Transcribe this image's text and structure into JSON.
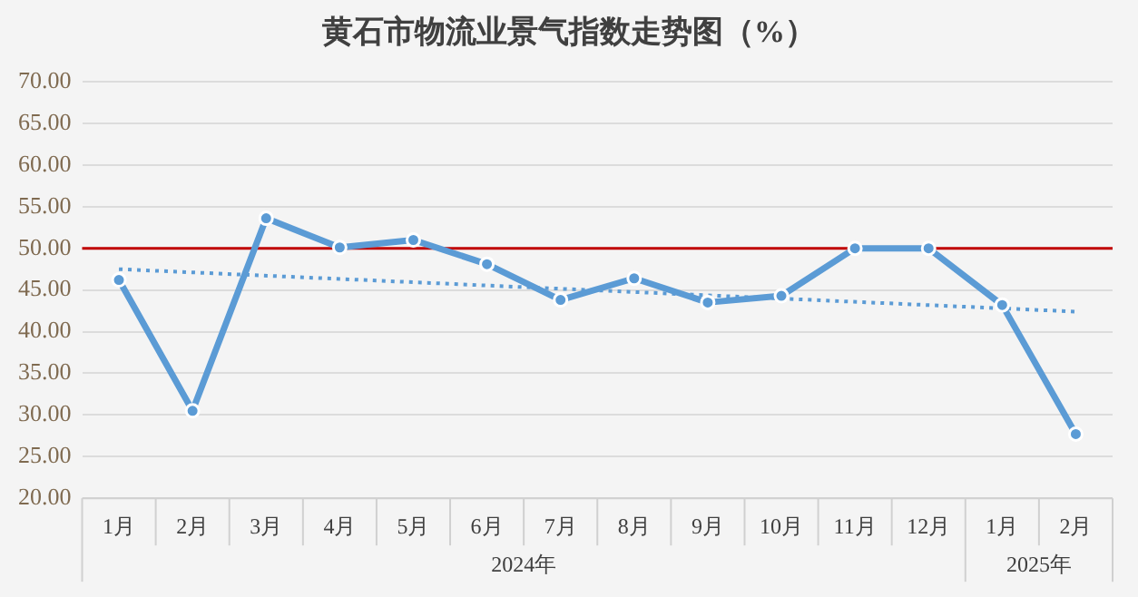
{
  "chart_data": {
    "type": "line",
    "title": "黄石市物流业景气指数走势图（%）",
    "categories": [
      "1月",
      "2月",
      "3月",
      "4月",
      "5月",
      "6月",
      "7月",
      "8月",
      "9月",
      "10月",
      "11月",
      "12月",
      "1月",
      "2月"
    ],
    "series": [
      {
        "color": "#5b9bd5",
        "marker": "circle",
        "values": [
          46.2,
          30.5,
          53.6,
          50.1,
          51.0,
          48.1,
          43.8,
          46.4,
          43.5,
          44.3,
          50.0,
          50.0,
          43.2,
          27.7
        ]
      },
      {
        "type": "line",
        "color": "#5b9bd5",
        "line_style": "dotted",
        "marker": "none",
        "values": [
          47.5,
          null,
          null,
          null,
          null,
          null,
          null,
          null,
          null,
          null,
          null,
          null,
          null,
          42.4
        ]
      }
    ],
    "ylim": [
      20,
      70
    ],
    "yticks": [
      {
        "value": 20,
        "label": "20.00"
      },
      {
        "value": 25,
        "label": "25.00"
      },
      {
        "value": 30,
        "label": "30.00"
      },
      {
        "value": 35,
        "label": "35.00"
      },
      {
        "value": 40,
        "label": "40.00"
      },
      {
        "value": 45,
        "label": "45.00"
      },
      {
        "value": 50,
        "label": "50.00"
      },
      {
        "value": 55,
        "label": "55.00"
      },
      {
        "value": 60,
        "label": "60.00"
      },
      {
        "value": 65,
        "label": "65.00"
      },
      {
        "value": 70,
        "label": "70.00"
      }
    ],
    "grid": "y",
    "legend": false,
    "ref_lines": [
      {
        "axis": "y",
        "value": 50,
        "color": "#c00000"
      }
    ],
    "annotations": [
      "2024年",
      "2025年"
    ]
  }
}
